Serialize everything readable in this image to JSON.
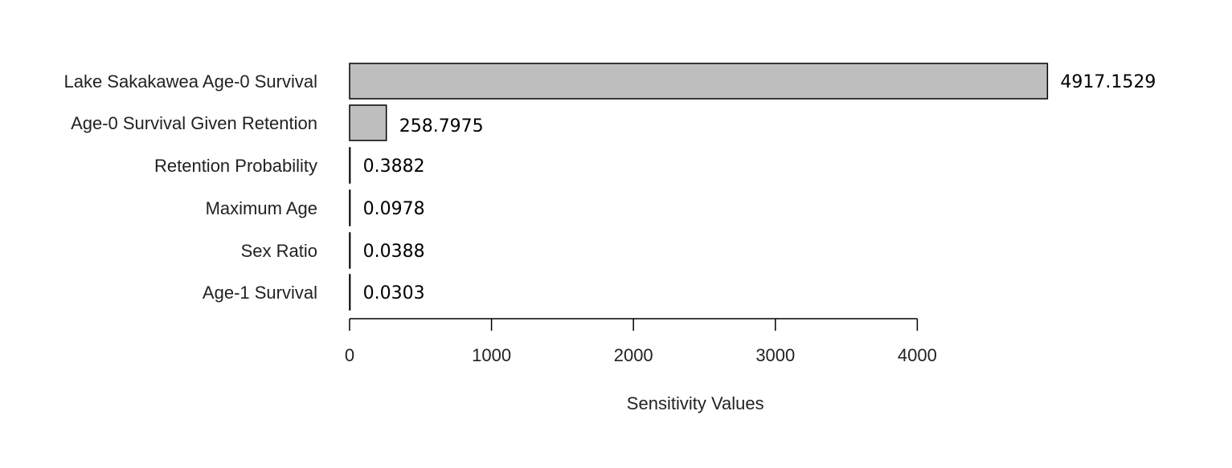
{
  "chart_data": {
    "type": "bar",
    "orientation": "horizontal",
    "categories": [
      "Lake Sakakawea Age-0 Survival",
      "Age-0 Survival Given Retention",
      "Retention Probability",
      "Maximum Age",
      "Sex Ratio",
      "Age-1 Survival"
    ],
    "values": [
      4917.1529,
      258.7975,
      0.3882,
      0.0978,
      0.0388,
      0.0303
    ],
    "value_labels": [
      "4917.1529",
      "258.7975",
      "0.3882",
      "0.0978",
      "0.0388",
      "0.0303"
    ],
    "xlabel": "Sensitivity Values",
    "ylabel": "",
    "xlim": [
      0,
      4917.1529
    ],
    "xticks": [
      0,
      1000,
      2000,
      3000,
      4000
    ],
    "xtick_labels": [
      "0",
      "1000",
      "2000",
      "3000",
      "4000"
    ],
    "grid": false,
    "legend": "none",
    "colors": {
      "bar_fill": "#bebebe",
      "bar_stroke": "#000000",
      "axis": "#000000"
    }
  }
}
